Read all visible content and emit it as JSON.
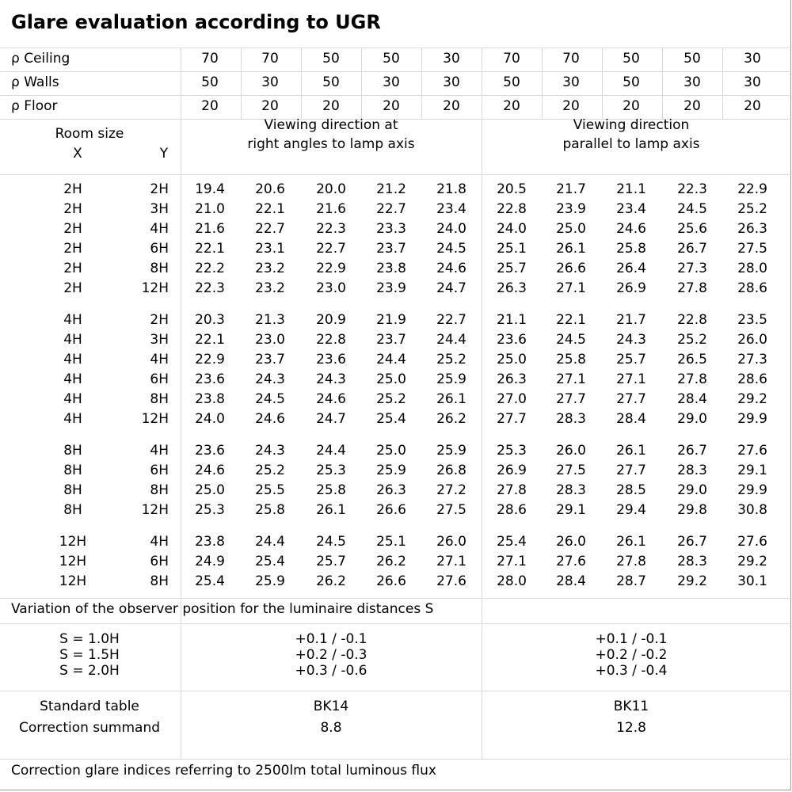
{
  "title": "Glare evaluation according to UGR",
  "reflectance_rows": [
    {
      "label": "ρ Ceiling",
      "values": [
        "70",
        "70",
        "50",
        "50",
        "30",
        "70",
        "70",
        "50",
        "50",
        "30"
      ]
    },
    {
      "label": "ρ Walls",
      "values": [
        "50",
        "30",
        "50",
        "30",
        "30",
        "50",
        "30",
        "50",
        "30",
        "30"
      ]
    },
    {
      "label": "ρ Floor",
      "values": [
        "20",
        "20",
        "20",
        "20",
        "20",
        "20",
        "20",
        "20",
        "20",
        "20"
      ]
    }
  ],
  "header": {
    "room_size": "Room size",
    "x": "X",
    "y": "Y",
    "right_angles": [
      "Viewing direction at",
      "right angles to lamp axis"
    ],
    "parallel": [
      "Viewing direction",
      "parallel to lamp axis"
    ]
  },
  "groups": [
    [
      {
        "x": "2H",
        "y": "2H",
        "values": [
          "19.4",
          "20.6",
          "20.0",
          "21.2",
          "21.8",
          "20.5",
          "21.7",
          "21.1",
          "22.3",
          "22.9"
        ]
      },
      {
        "x": "2H",
        "y": "3H",
        "values": [
          "21.0",
          "22.1",
          "21.6",
          "22.7",
          "23.4",
          "22.8",
          "23.9",
          "23.4",
          "24.5",
          "25.2"
        ]
      },
      {
        "x": "2H",
        "y": "4H",
        "values": [
          "21.6",
          "22.7",
          "22.3",
          "23.3",
          "24.0",
          "24.0",
          "25.0",
          "24.6",
          "25.6",
          "26.3"
        ]
      },
      {
        "x": "2H",
        "y": "6H",
        "values": [
          "22.1",
          "23.1",
          "22.7",
          "23.7",
          "24.5",
          "25.1",
          "26.1",
          "25.8",
          "26.7",
          "27.5"
        ]
      },
      {
        "x": "2H",
        "y": "8H",
        "values": [
          "22.2",
          "23.2",
          "22.9",
          "23.8",
          "24.6",
          "25.7",
          "26.6",
          "26.4",
          "27.3",
          "28.0"
        ]
      },
      {
        "x": "2H",
        "y": "12H",
        "values": [
          "22.3",
          "23.2",
          "23.0",
          "23.9",
          "24.7",
          "26.3",
          "27.1",
          "26.9",
          "27.8",
          "28.6"
        ]
      }
    ],
    [
      {
        "x": "4H",
        "y": "2H",
        "values": [
          "20.3",
          "21.3",
          "20.9",
          "21.9",
          "22.7",
          "21.1",
          "22.1",
          "21.7",
          "22.8",
          "23.5"
        ]
      },
      {
        "x": "4H",
        "y": "3H",
        "values": [
          "22.1",
          "23.0",
          "22.8",
          "23.7",
          "24.4",
          "23.6",
          "24.5",
          "24.3",
          "25.2",
          "26.0"
        ]
      },
      {
        "x": "4H",
        "y": "4H",
        "values": [
          "22.9",
          "23.7",
          "23.6",
          "24.4",
          "25.2",
          "25.0",
          "25.8",
          "25.7",
          "26.5",
          "27.3"
        ]
      },
      {
        "x": "4H",
        "y": "6H",
        "values": [
          "23.6",
          "24.3",
          "24.3",
          "25.0",
          "25.9",
          "26.3",
          "27.1",
          "27.1",
          "27.8",
          "28.6"
        ]
      },
      {
        "x": "4H",
        "y": "8H",
        "values": [
          "23.8",
          "24.5",
          "24.6",
          "25.2",
          "26.1",
          "27.0",
          "27.7",
          "27.7",
          "28.4",
          "29.2"
        ]
      },
      {
        "x": "4H",
        "y": "12H",
        "values": [
          "24.0",
          "24.6",
          "24.7",
          "25.4",
          "26.2",
          "27.7",
          "28.3",
          "28.4",
          "29.0",
          "29.9"
        ]
      }
    ],
    [
      {
        "x": "8H",
        "y": "4H",
        "values": [
          "23.6",
          "24.3",
          "24.4",
          "25.0",
          "25.9",
          "25.3",
          "26.0",
          "26.1",
          "26.7",
          "27.6"
        ]
      },
      {
        "x": "8H",
        "y": "6H",
        "values": [
          "24.6",
          "25.2",
          "25.3",
          "25.9",
          "26.8",
          "26.9",
          "27.5",
          "27.7",
          "28.3",
          "29.1"
        ]
      },
      {
        "x": "8H",
        "y": "8H",
        "values": [
          "25.0",
          "25.5",
          "25.8",
          "26.3",
          "27.2",
          "27.8",
          "28.3",
          "28.5",
          "29.0",
          "29.9"
        ]
      },
      {
        "x": "8H",
        "y": "12H",
        "values": [
          "25.3",
          "25.8",
          "26.1",
          "26.6",
          "27.5",
          "28.6",
          "29.1",
          "29.4",
          "29.8",
          "30.8"
        ]
      }
    ],
    [
      {
        "x": "12H",
        "y": "4H",
        "values": [
          "23.8",
          "24.4",
          "24.5",
          "25.1",
          "26.0",
          "25.4",
          "26.0",
          "26.1",
          "26.7",
          "27.6"
        ]
      },
      {
        "x": "12H",
        "y": "6H",
        "values": [
          "24.9",
          "25.4",
          "25.7",
          "26.2",
          "27.1",
          "27.1",
          "27.6",
          "27.8",
          "28.3",
          "29.2"
        ]
      },
      {
        "x": "12H",
        "y": "8H",
        "values": [
          "25.4",
          "25.9",
          "26.2",
          "26.6",
          "27.6",
          "28.0",
          "28.4",
          "28.7",
          "29.2",
          "30.1"
        ]
      }
    ]
  ],
  "variation": {
    "label": "Variation of the observer position for the luminaire distances S",
    "rows": [
      {
        "s": "S = 1.0H",
        "right_angles": "+0.1 / -0.1",
        "parallel": "+0.1 / -0.1"
      },
      {
        "s": "S = 1.5H",
        "right_angles": "+0.2 / -0.3",
        "parallel": "+0.2 / -0.2"
      },
      {
        "s": "S = 2.0H",
        "right_angles": "+0.3 / -0.6",
        "parallel": "+0.3 / -0.4"
      }
    ]
  },
  "standard": {
    "table_label": "Standard table",
    "summand_label": "Correction summand",
    "right_angles_table": "BK14",
    "right_angles_summand": "8.8",
    "parallel_table": "BK11",
    "parallel_summand": "12.8"
  },
  "footer": "Correction glare indices referring to 2500lm total luminous flux"
}
